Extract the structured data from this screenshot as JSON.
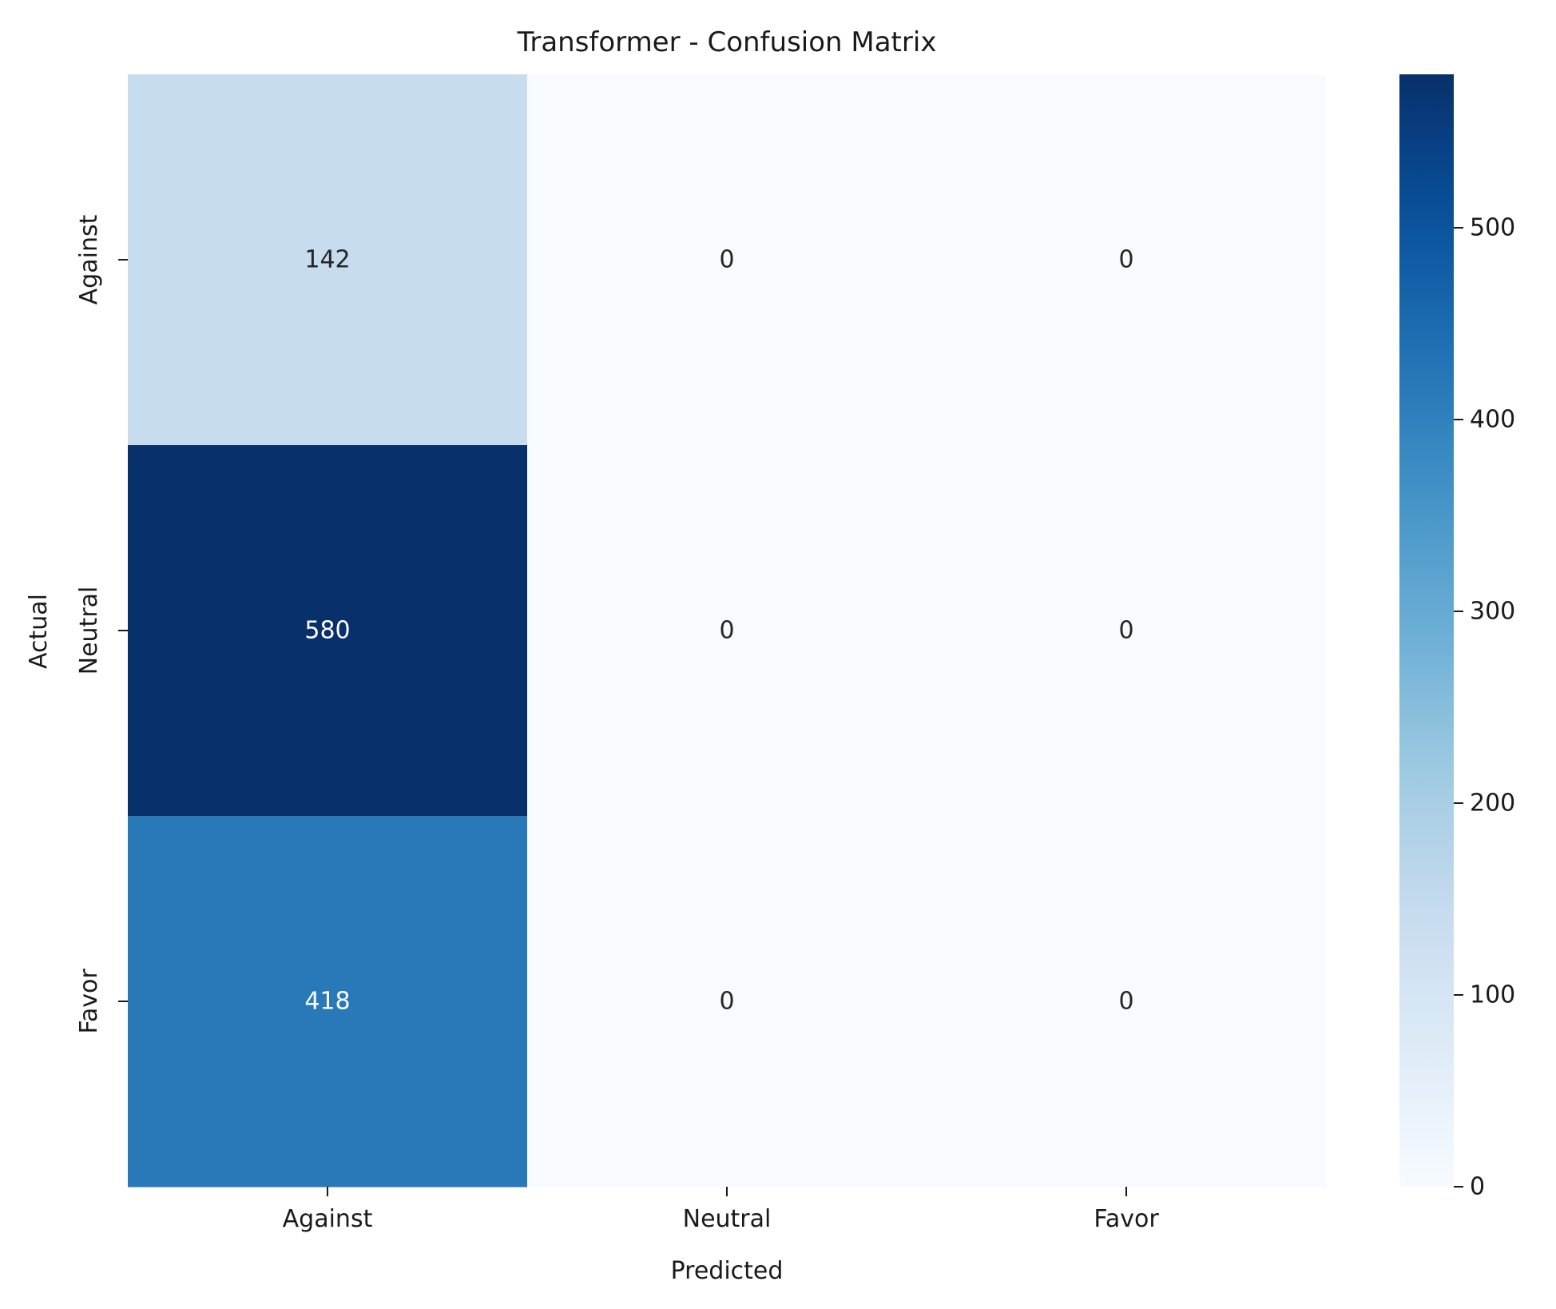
{
  "chart_data": {
    "type": "heatmap",
    "title": "Transformer - Confusion Matrix",
    "xlabel": "Predicted",
    "ylabel": "Actual",
    "x_categories": [
      "Against",
      "Neutral",
      "Favor"
    ],
    "y_categories": [
      "Against",
      "Neutral",
      "Favor"
    ],
    "values": [
      [
        142,
        0,
        0
      ],
      [
        580,
        0,
        0
      ],
      [
        418,
        0,
        0
      ]
    ],
    "colormap": "Blues",
    "color_range": [
      0,
      580
    ],
    "colorbar": {
      "ticks": [
        0,
        100,
        200,
        300,
        400,
        500
      ],
      "tick_labels": [
        "0",
        "100",
        "200",
        "300",
        "400",
        "500"
      ]
    },
    "colors": {
      "dark_text": "#262626",
      "light_text": "#ffffff"
    }
  }
}
